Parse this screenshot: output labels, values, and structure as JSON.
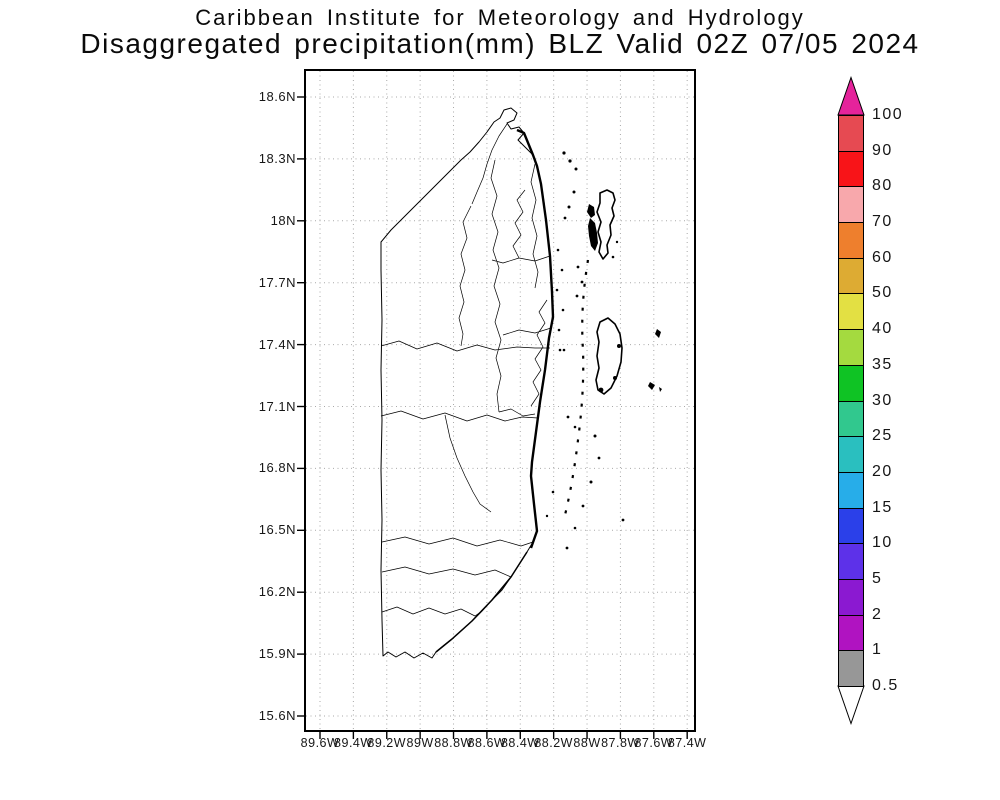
{
  "title": {
    "line1": "Caribbean Institute for Meteorology and Hydrology",
    "line2": "Disaggregated precipitation(mm) BLZ Valid 02Z 07/05 2024"
  },
  "map": {
    "lat_ticks": [
      "18.6N",
      "18.3N",
      "18N",
      "17.7N",
      "17.4N",
      "17.1N",
      "16.8N",
      "16.5N",
      "16.2N",
      "15.9N",
      "15.6N"
    ],
    "lon_ticks": [
      "89.6W",
      "89.4W",
      "89.2W",
      "89W",
      "88.8W",
      "88.6W",
      "88.4W",
      "88.2W",
      "88W",
      "87.8W",
      "87.6W",
      "87.4W"
    ]
  },
  "colorbar": {
    "scale_values": [
      100,
      90,
      80,
      70,
      60,
      50,
      40,
      35,
      30,
      25,
      20,
      15,
      10,
      5,
      2,
      1,
      0.5
    ],
    "segments": [
      {
        "label": "100",
        "color": "#e64a52"
      },
      {
        "label": "90",
        "color": "#f81418"
      },
      {
        "label": "80",
        "color": "#f8a8ac"
      },
      {
        "label": "70",
        "color": "#ee7f2d"
      },
      {
        "label": "60",
        "color": "#ddab33"
      },
      {
        "label": "50",
        "color": "#e3e043"
      },
      {
        "label": "40",
        "color": "#a4da3f"
      },
      {
        "label": "35",
        "color": "#0fc324"
      },
      {
        "label": "30",
        "color": "#31c88e"
      },
      {
        "label": "25",
        "color": "#2abfbf"
      },
      {
        "label": "20",
        "color": "#27ade9"
      },
      {
        "label": "15",
        "color": "#2b40e9"
      },
      {
        "label": "10",
        "color": "#5d31e9"
      },
      {
        "label": "5",
        "color": "#8b19d1"
      },
      {
        "label": "2",
        "color": "#b013c1"
      },
      {
        "label": "1",
        "color": "#979797"
      }
    ],
    "bottom_label": "0.5",
    "top_arrow_color": "#e5239b",
    "bottom_arrow_color": "#ffffff"
  }
}
